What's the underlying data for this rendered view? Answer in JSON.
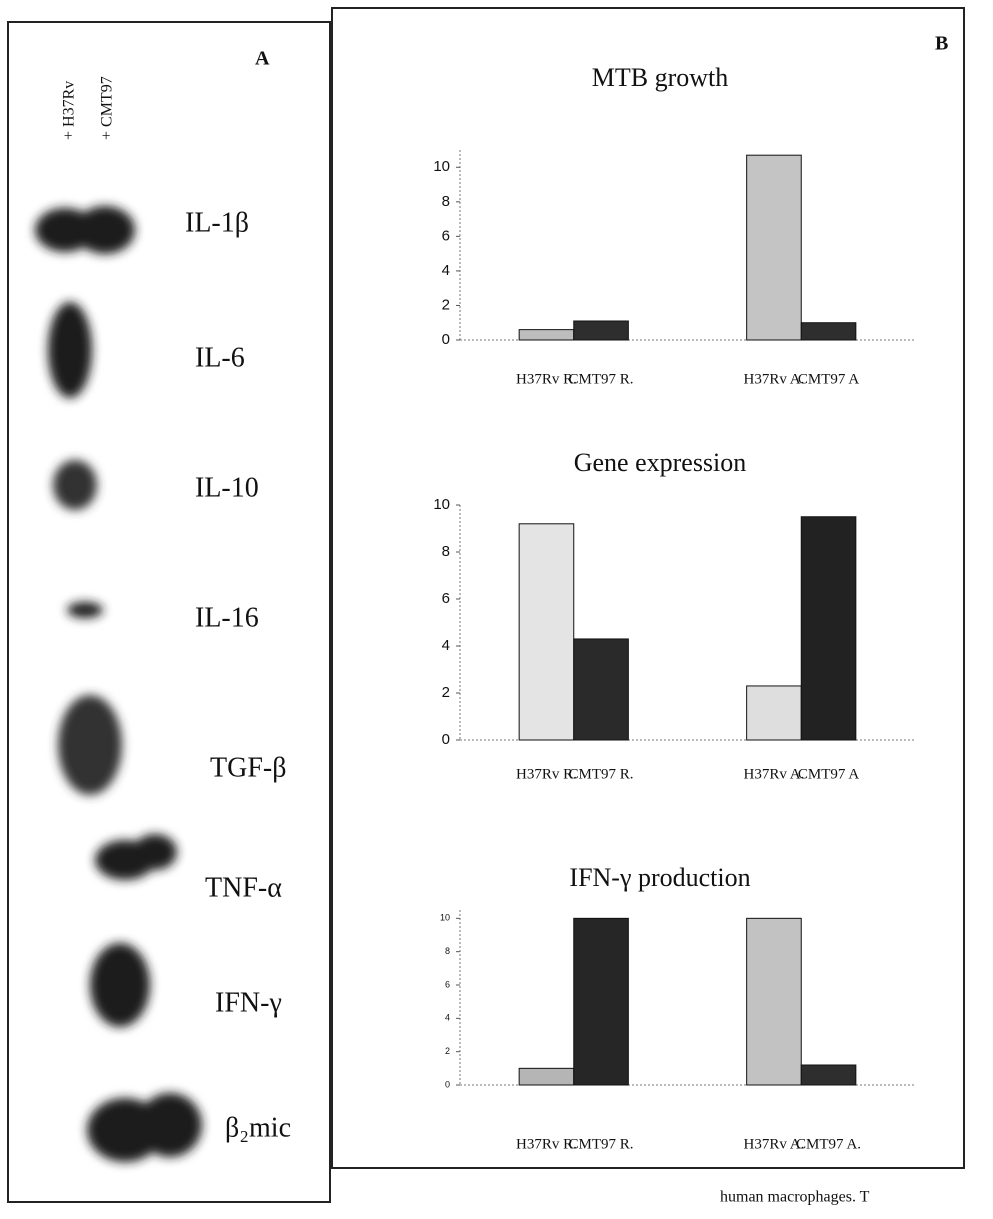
{
  "panel_a": {
    "label": "A",
    "lanes": [
      "+ H37Rv",
      "+ CMT97"
    ],
    "rows": [
      "IL-1β",
      "IL-6",
      "IL-10",
      "IL-16",
      "TGF-β",
      "TNF-α",
      "IFN-γ",
      "β₂mic"
    ]
  },
  "panel_b": {
    "label": "B"
  },
  "caption": "human macrophages. T",
  "chart_data": [
    {
      "type": "bar",
      "title": "MTB growth",
      "categories": [
        "H37Rv R.",
        "CMT97 R.",
        "H37Rv A.",
        "CMT97 A"
      ],
      "values": [
        0.6,
        1.1,
        10.7,
        1.0
      ],
      "colors": [
        "#bdbdbd",
        "#2e2e2e",
        "#c4c4c4",
        "#2e2e2e"
      ],
      "ylim": [
        0,
        11
      ],
      "yticks": [
        0,
        2,
        4,
        6,
        8,
        10
      ]
    },
    {
      "type": "bar",
      "title": "Gene expression",
      "categories": [
        "H37Rv R.",
        "CMT97 R.",
        "H37Rv A.",
        "CMT97 A"
      ],
      "values": [
        9.2,
        4.3,
        2.3,
        9.5
      ],
      "colors": [
        "#e4e4e4",
        "#2a2a2a",
        "#dedede",
        "#222222"
      ],
      "ylim": [
        0,
        10
      ],
      "yticks": [
        0,
        2,
        4,
        6,
        8,
        10
      ]
    },
    {
      "type": "bar",
      "title": "IFN-γ production",
      "categories": [
        "H37Rv R.",
        "CMT97 R.",
        "H37Rv A.",
        "CMT97 A."
      ],
      "values": [
        1.0,
        10.0,
        10.0,
        1.2
      ],
      "colors": [
        "#b5b5b5",
        "#262626",
        "#c2c2c2",
        "#2e2e2e"
      ],
      "ylim": [
        0,
        10.5
      ],
      "yticks": [
        0,
        2,
        4,
        6,
        8,
        10
      ]
    }
  ]
}
